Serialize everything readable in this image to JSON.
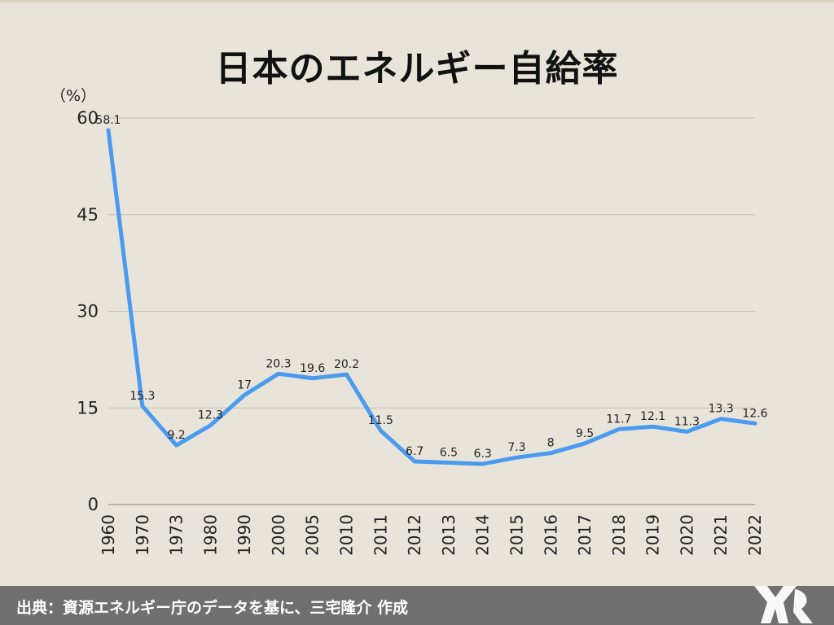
{
  "title": "日本のエネルギー自給率",
  "unit_label": "（%）",
  "source": "出典：資源エネルギー庁のデータを基に、三宅隆介 作成",
  "colors": {
    "background": "#e8e4da",
    "line": "#4a9aee",
    "grid": "#c4c0b6",
    "footer": "#707070"
  },
  "chart_data": {
    "type": "line",
    "title": "日本のエネルギー自給率",
    "ylabel": "（%）",
    "xlabel": "",
    "ylim": [
      0,
      60
    ],
    "yticks": [
      0,
      15,
      30,
      45,
      60
    ],
    "grid": true,
    "categories": [
      "1960",
      "1970",
      "1973",
      "1980",
      "1990",
      "2000",
      "2005",
      "2010",
      "2011",
      "2012",
      "2013",
      "2014",
      "2015",
      "2016",
      "2017",
      "2018",
      "2019",
      "2020",
      "2021",
      "2022"
    ],
    "series": [
      {
        "values": [
          58.1,
          15.3,
          9.2,
          12.3,
          17,
          20.3,
          19.6,
          20.2,
          11.5,
          6.7,
          6.5,
          6.3,
          7.3,
          8,
          9.5,
          11.7,
          12.1,
          11.3,
          13.3,
          12.6
        ],
        "labels": [
          "58.1",
          "15.3",
          "9.2",
          "12.3",
          "17",
          "20.3",
          "19.6",
          "20.2",
          "11.5",
          "6.7",
          "6.5",
          "6.3",
          "7.3",
          "8",
          "9.5",
          "11.7",
          "12.1",
          "11.3",
          "13.3",
          "12.6"
        ]
      }
    ]
  },
  "logo": {
    "icon": "mk-logo-icon"
  }
}
